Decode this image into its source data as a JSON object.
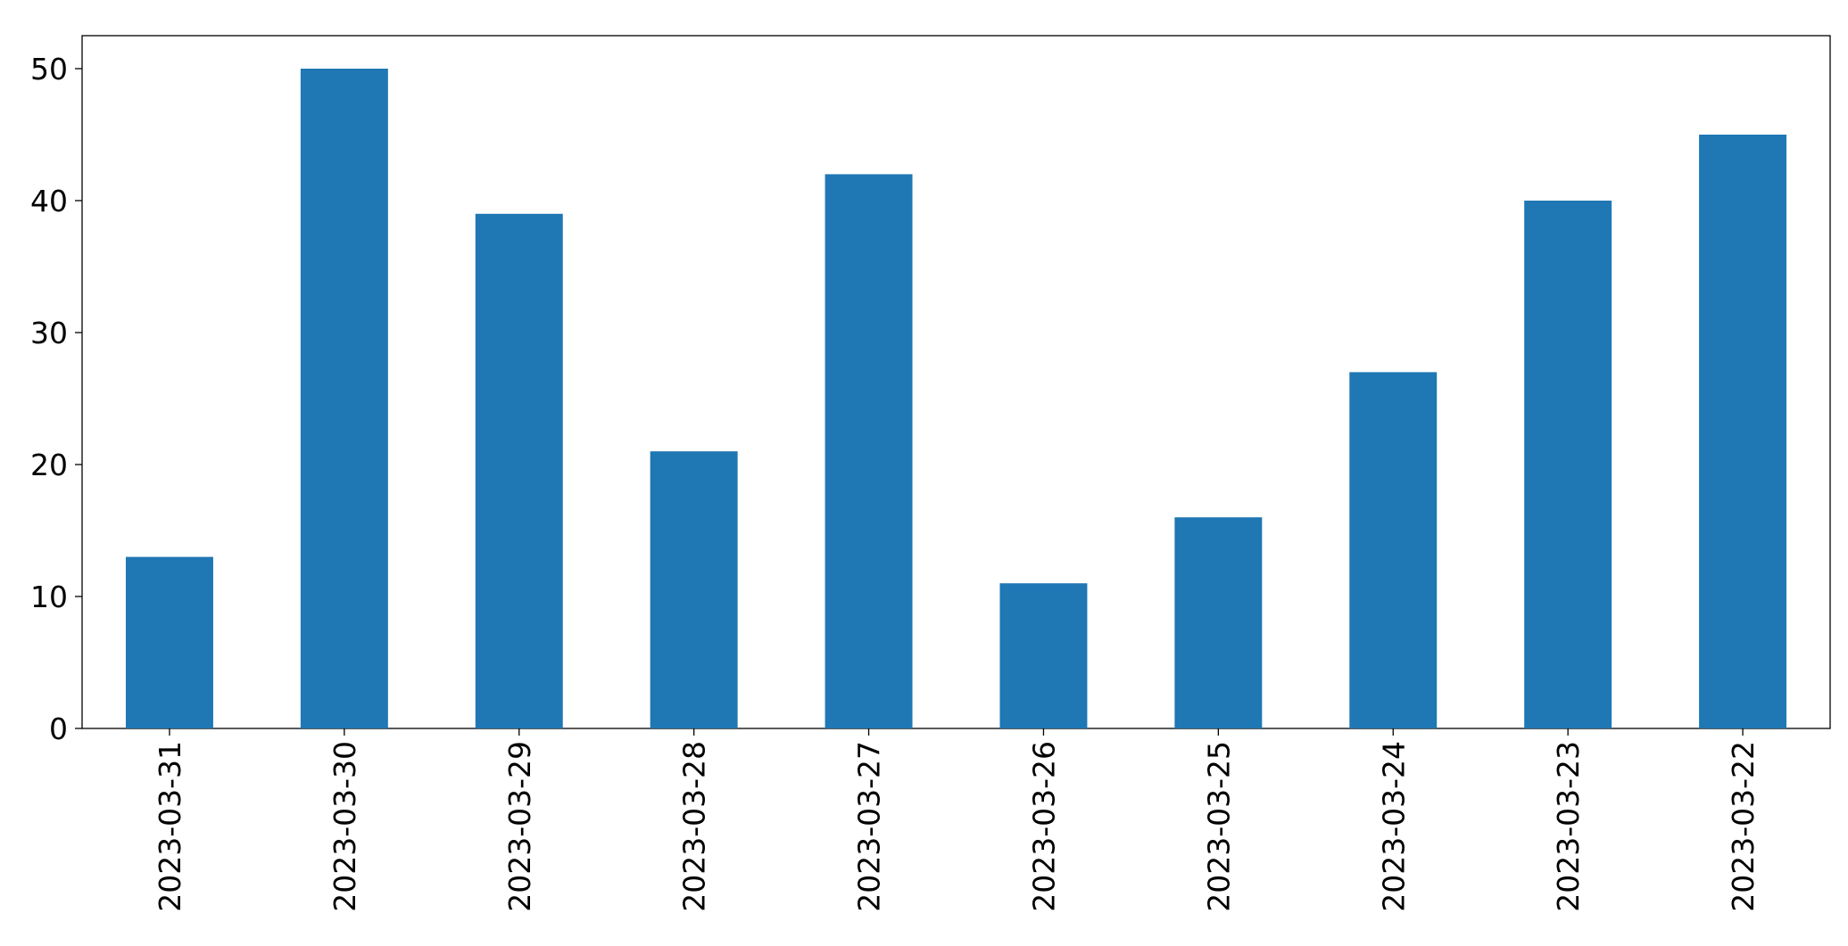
{
  "chart_data": {
    "type": "bar",
    "categories": [
      "2023-03-31",
      "2023-03-30",
      "2023-03-29",
      "2023-03-28",
      "2023-03-27",
      "2023-03-26",
      "2023-03-25",
      "2023-03-24",
      "2023-03-23",
      "2023-03-22"
    ],
    "values": [
      13,
      50,
      39,
      21,
      42,
      11,
      16,
      27,
      40,
      45
    ],
    "color": "#1f77b4",
    "ylim": [
      0,
      52.5
    ],
    "yticks": [
      0,
      10,
      20,
      30,
      40,
      50
    ],
    "grid": false
  }
}
